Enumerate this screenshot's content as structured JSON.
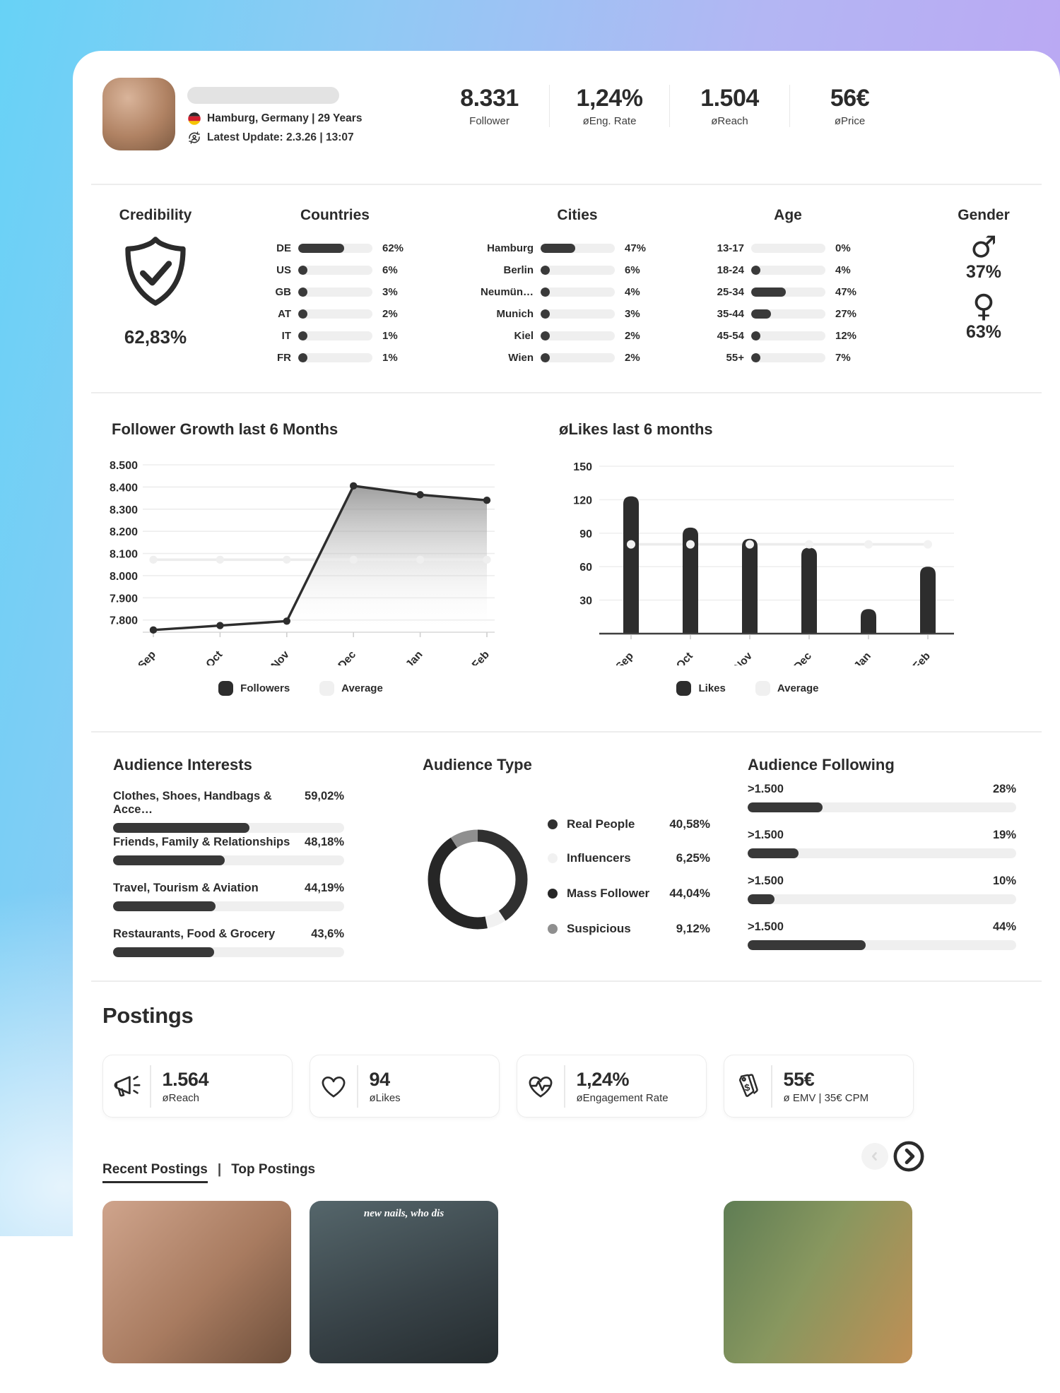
{
  "header": {
    "location": "Hamburg, Germany | 29 Years",
    "latest_update": "Latest Update: 2.3.26 | 13:07",
    "stats": [
      {
        "value": "8.331",
        "label": "Follower"
      },
      {
        "value": "1,24%",
        "label": "øEng. Rate"
      },
      {
        "value": "1.504",
        "label": "øReach"
      },
      {
        "value": "56€",
        "label": "øPrice"
      }
    ]
  },
  "demographics": {
    "credibility": {
      "title": "Credibility",
      "value": "62,83%"
    },
    "countries": {
      "title": "Countries",
      "rows": [
        {
          "label": "DE",
          "value": 62,
          "pct": "62%"
        },
        {
          "label": "US",
          "value": 6,
          "pct": "6%"
        },
        {
          "label": "GB",
          "value": 3,
          "pct": "3%"
        },
        {
          "label": "AT",
          "value": 2,
          "pct": "2%"
        },
        {
          "label": "IT",
          "value": 1,
          "pct": "1%"
        },
        {
          "label": "FR",
          "value": 1,
          "pct": "1%"
        }
      ]
    },
    "cities": {
      "title": "Cities",
      "rows": [
        {
          "label": "Hamburg",
          "value": 47,
          "pct": "47%"
        },
        {
          "label": "Berlin",
          "value": 6,
          "pct": "6%"
        },
        {
          "label": "Neumün…",
          "value": 4,
          "pct": "4%"
        },
        {
          "label": "Munich",
          "value": 3,
          "pct": "3%"
        },
        {
          "label": "Kiel",
          "value": 2,
          "pct": "2%"
        },
        {
          "label": "Wien",
          "value": 2,
          "pct": "2%"
        }
      ]
    },
    "age": {
      "title": "Age",
      "rows": [
        {
          "label": "13-17",
          "value": 0,
          "pct": "0%"
        },
        {
          "label": "18-24",
          "value": 4,
          "pct": "4%"
        },
        {
          "label": "25-34",
          "value": 47,
          "pct": "47%"
        },
        {
          "label": "35-44",
          "value": 27,
          "pct": "27%"
        },
        {
          "label": "45-54",
          "value": 12,
          "pct": "12%"
        },
        {
          "label": "55+",
          "value": 7,
          "pct": "7%"
        }
      ]
    },
    "gender": {
      "title": "Gender",
      "items": [
        {
          "symbol": "♂",
          "label": "male",
          "pct": "37%"
        },
        {
          "symbol": "♀",
          "label": "female",
          "pct": "63%"
        }
      ]
    }
  },
  "chart_data": [
    {
      "type": "area",
      "title": "Follower Growth last 6 Months",
      "x": [
        "Sep",
        "Oct",
        "Nov",
        "Dec",
        "Jan",
        "Feb"
      ],
      "series": [
        {
          "name": "Followers",
          "values": [
            7755,
            7775,
            7795,
            8405,
            8365,
            8340
          ]
        },
        {
          "name": "Average",
          "values": [
            8072,
            8072,
            8072,
            8072,
            8072,
            8072
          ]
        }
      ],
      "ylim": [
        7745,
        8500
      ],
      "yticks": [
        7800,
        7900,
        8000,
        8100,
        8200,
        8300,
        8400,
        8500
      ],
      "ytick_labels": [
        "7.800",
        "7.900",
        "8.000",
        "8.100",
        "8.200",
        "8.300",
        "8.400",
        "8.500"
      ],
      "grid": true,
      "legend": [
        {
          "label": "Followers",
          "color": "#2d2d2d"
        },
        {
          "label": "Average",
          "color": "#f0f0f0"
        }
      ]
    },
    {
      "type": "bar",
      "title": "øLikes last 6 months",
      "x": [
        "Sep",
        "Oct",
        "Nov",
        "Dec",
        "Jan",
        "Feb"
      ],
      "series": [
        {
          "name": "Likes",
          "values": [
            123,
            95,
            85,
            77,
            22,
            60
          ]
        },
        {
          "name": "Average",
          "values": [
            80,
            80,
            80,
            80,
            80,
            80
          ]
        }
      ],
      "ylim": [
        0,
        150
      ],
      "yticks": [
        30,
        60,
        90,
        120,
        150
      ],
      "ytick_labels": [
        "30",
        "60",
        "90",
        "120",
        "150"
      ],
      "grid": true,
      "legend": [
        {
          "label": "Likes",
          "color": "#2d2d2d"
        },
        {
          "label": "Average",
          "color": "#f0f0f0"
        }
      ]
    },
    {
      "type": "pie",
      "title": "Audience Type",
      "labels": [
        "Real People",
        "Influencers",
        "Mass Follower",
        "Suspicious"
      ],
      "values": [
        40.58,
        6.25,
        44.04,
        9.12
      ],
      "display_values": [
        "40,58%",
        "6,25%",
        "44,04%",
        "9,12%"
      ],
      "colors": [
        "#303030",
        "#f1f1f1",
        "#262626",
        "#8f8f8f"
      ],
      "legend_position": "right"
    }
  ],
  "audience": {
    "interests": {
      "title": "Audience Interests",
      "rows": [
        {
          "label": "Clothes, Shoes, Handbags & Acce…",
          "value": 59.02,
          "pct": "59,02%"
        },
        {
          "label": "Friends, Family & Relationships",
          "value": 48.18,
          "pct": "48,18%"
        },
        {
          "label": "Travel, Tourism & Aviation",
          "value": 44.19,
          "pct": "44,19%"
        },
        {
          "label": "Restaurants, Food & Grocery",
          "value": 43.6,
          "pct": "43,6%"
        }
      ]
    },
    "type": {
      "title": "Audience Type"
    },
    "following": {
      "title": "Audience Following",
      "rows": [
        {
          "label": ">1.500",
          "value": 28,
          "pct": "28%"
        },
        {
          "label": ">1.500",
          "value": 19,
          "pct": "19%"
        },
        {
          "label": ">1.500",
          "value": 10,
          "pct": "10%"
        },
        {
          "label": ">1.500",
          "value": 44,
          "pct": "44%"
        }
      ]
    }
  },
  "postings": {
    "title": "Postings",
    "cards": [
      {
        "icon": "megaphone-icon",
        "value": "1.564",
        "label": "øReach"
      },
      {
        "icon": "heart-icon",
        "value": "94",
        "label": "øLikes"
      },
      {
        "icon": "heart-pulse-icon",
        "value": "1,24%",
        "label": "øEngagement Rate"
      },
      {
        "icon": "price-tags-icon",
        "value": "55€",
        "label": "ø EMV | 35€ CPM"
      }
    ],
    "tabs": [
      {
        "label": "Recent Postings",
        "active": true
      },
      {
        "label": "Top Postings",
        "active": false
      }
    ],
    "thumbnails": [
      {
        "caption": ""
      },
      {
        "caption": "new nails, who dis"
      },
      {
        "caption": ""
      },
      {
        "caption": ""
      }
    ]
  }
}
